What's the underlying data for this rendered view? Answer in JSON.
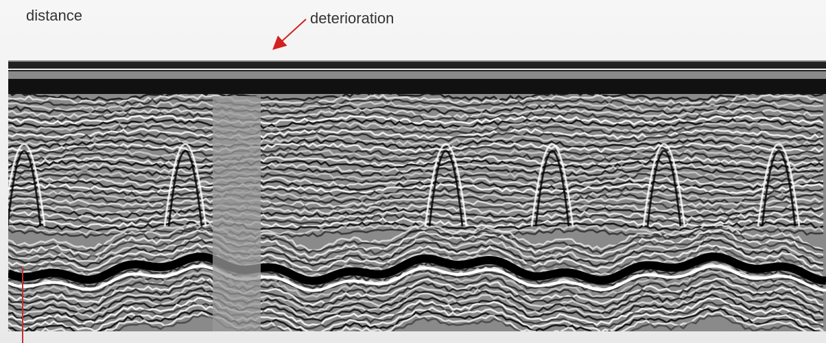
{
  "annotations": {
    "distance": "distance",
    "deterioration": "deterioration"
  }
}
